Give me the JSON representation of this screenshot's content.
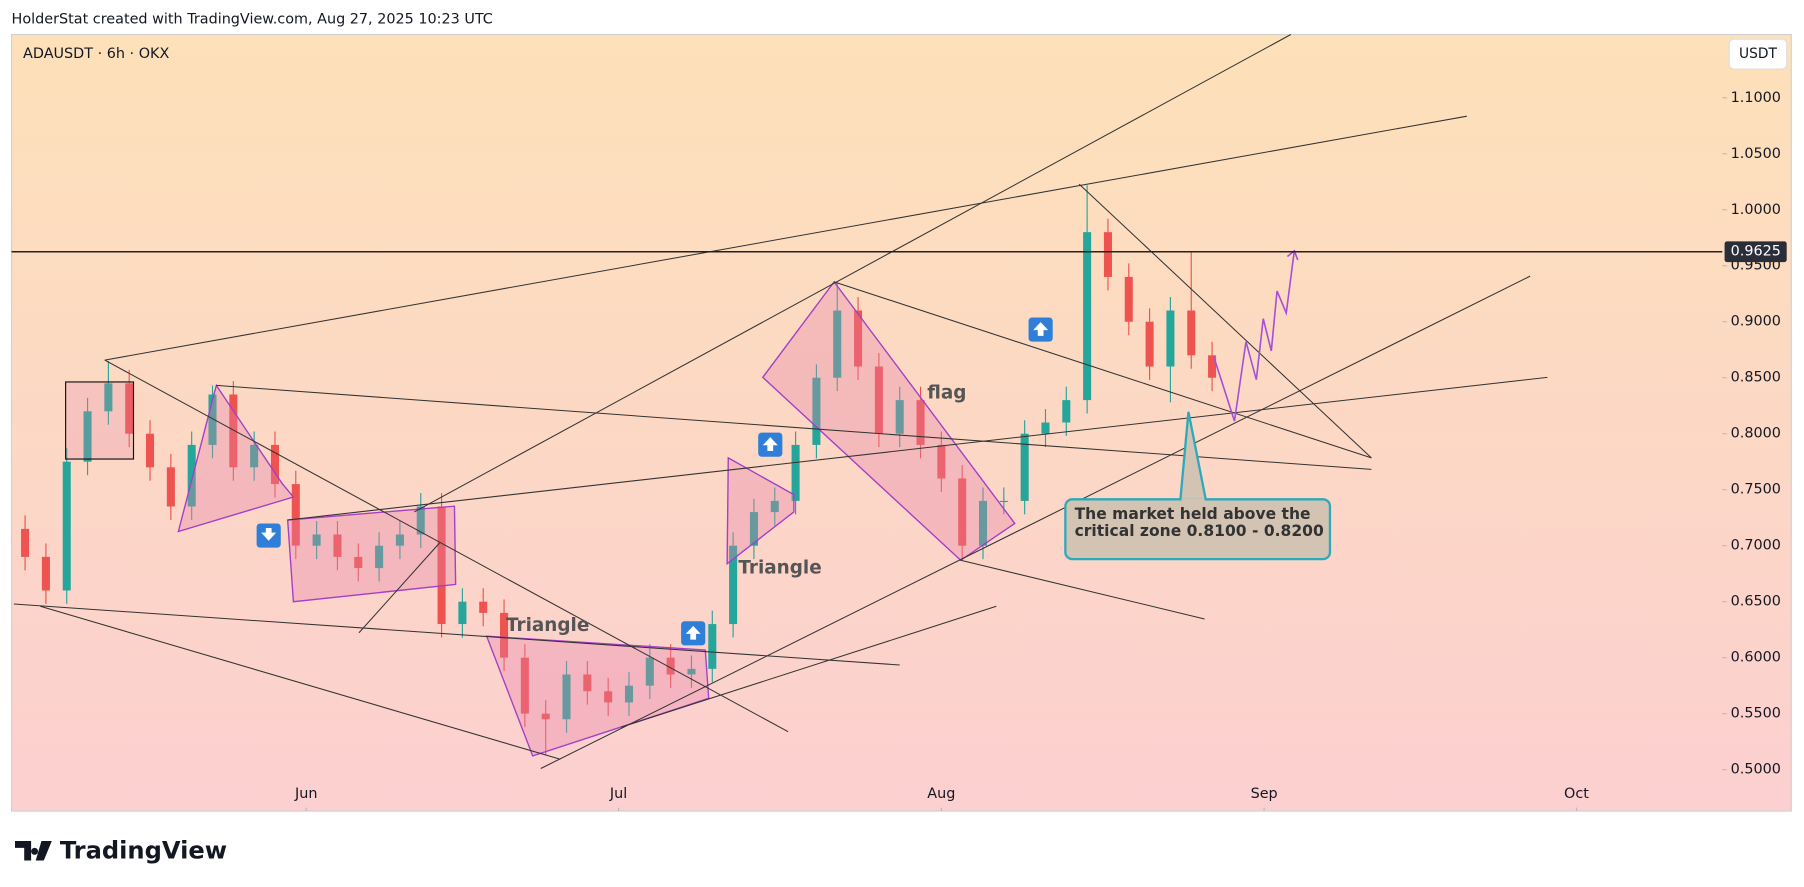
{
  "header": {
    "credit": "HolderStat created with TradingView.com, Aug 27, 2025 10:23 UTC",
    "logo": "TradingView"
  },
  "chart_data": {
    "type": "candlestick",
    "title": "ADAUSDT · 6h · OKX",
    "currency": "USDT",
    "x": [
      4,
      6,
      8,
      10,
      12,
      14,
      16,
      18,
      20,
      22,
      24,
      26,
      28,
      30,
      32,
      34,
      36,
      38,
      40,
      42,
      44,
      46,
      48,
      50,
      52,
      54,
      56,
      58,
      60,
      62,
      64,
      66,
      68,
      70,
      72,
      74,
      76,
      78,
      80,
      82,
      84,
      86,
      88,
      90,
      92,
      94,
      96,
      98,
      100,
      102,
      104,
      106,
      108,
      110,
      112,
      114,
      116,
      118
    ],
    "open": [
      0.715,
      0.69,
      0.66,
      0.775,
      0.82,
      0.845,
      0.8,
      0.77,
      0.735,
      0.79,
      0.835,
      0.77,
      0.79,
      0.755,
      0.7,
      0.71,
      0.69,
      0.68,
      0.7,
      0.71,
      0.735,
      0.63,
      0.65,
      0.64,
      0.6,
      0.55,
      0.545,
      0.585,
      0.57,
      0.56,
      0.575,
      0.6,
      0.585,
      0.59,
      0.63,
      0.7,
      0.73,
      0.74,
      0.79,
      0.85,
      0.91,
      0.86,
      0.8,
      0.83,
      0.79,
      0.76,
      0.7,
      0.74,
      0.74,
      0.8,
      0.81,
      0.83,
      0.98,
      0.94,
      0.9,
      0.86,
      0.91,
      0.87
    ],
    "high": [
      0.727,
      0.702,
      0.787,
      0.832,
      0.865,
      0.857,
      0.812,
      0.782,
      0.802,
      0.843,
      0.847,
      0.802,
      0.802,
      0.767,
      0.722,
      0.722,
      0.702,
      0.712,
      0.722,
      0.747,
      0.747,
      0.662,
      0.662,
      0.652,
      0.612,
      0.562,
      0.597,
      0.597,
      0.582,
      0.587,
      0.612,
      0.612,
      0.602,
      0.642,
      0.712,
      0.742,
      0.752,
      0.802,
      0.862,
      0.935,
      0.922,
      0.872,
      0.842,
      0.842,
      0.802,
      0.772,
      0.752,
      0.752,
      0.812,
      0.822,
      0.842,
      1.022,
      0.992,
      0.952,
      0.912,
      0.922,
      0.963,
      0.882
    ],
    "low": [
      0.678,
      0.648,
      0.648,
      0.763,
      0.808,
      0.788,
      0.758,
      0.723,
      0.723,
      0.778,
      0.758,
      0.758,
      0.743,
      0.688,
      0.688,
      0.678,
      0.668,
      0.668,
      0.688,
      0.698,
      0.618,
      0.618,
      0.628,
      0.588,
      0.538,
      0.513,
      0.533,
      0.558,
      0.548,
      0.548,
      0.563,
      0.573,
      0.573,
      0.578,
      0.618,
      0.688,
      0.718,
      0.728,
      0.778,
      0.838,
      0.848,
      0.788,
      0.788,
      0.778,
      0.748,
      0.688,
      0.688,
      0.728,
      0.728,
      0.788,
      0.798,
      0.818,
      0.928,
      0.888,
      0.848,
      0.828,
      0.858,
      0.838
    ],
    "close": [
      0.69,
      0.66,
      0.775,
      0.82,
      0.845,
      0.8,
      0.77,
      0.735,
      0.79,
      0.835,
      0.77,
      0.79,
      0.755,
      0.7,
      0.71,
      0.69,
      0.68,
      0.7,
      0.71,
      0.735,
      0.63,
      0.65,
      0.64,
      0.6,
      0.55,
      0.545,
      0.585,
      0.57,
      0.56,
      0.575,
      0.6,
      0.585,
      0.59,
      0.63,
      0.7,
      0.73,
      0.74,
      0.79,
      0.85,
      0.91,
      0.86,
      0.8,
      0.83,
      0.79,
      0.76,
      0.7,
      0.74,
      0.74,
      0.8,
      0.81,
      0.83,
      0.98,
      0.94,
      0.9,
      0.86,
      0.91,
      0.87,
      0.85
    ],
    "up_color": "#26a69a",
    "down_color": "#ef5350",
    "xlim": [
      2.7,
      167
    ],
    "xticks": [
      {
        "value": 31,
        "label": "Jun"
      },
      {
        "value": 61,
        "label": "Jul"
      },
      {
        "value": 92,
        "label": "Aug"
      },
      {
        "value": 123,
        "label": "Sep"
      },
      {
        "value": 153,
        "label": "Oct"
      }
    ],
    "ylim": [
      0.463,
      1.1565
    ],
    "yticks": [
      {
        "value": 0.5,
        "label": "0.5000"
      },
      {
        "value": 0.55,
        "label": "0.5500"
      },
      {
        "value": 0.6,
        "label": "0.6000"
      },
      {
        "value": 0.65,
        "label": "0.6500"
      },
      {
        "value": 0.7,
        "label": "0.7000"
      },
      {
        "value": 0.75,
        "label": "0.7500"
      },
      {
        "value": 0.8,
        "label": "0.8000"
      },
      {
        "value": 0.85,
        "label": "0.8500"
      },
      {
        "value": 0.9,
        "label": "0.9000"
      },
      {
        "value": 0.95,
        "label": "0.9500"
      },
      {
        "value": 1.0,
        "label": "1.0000"
      },
      {
        "value": 1.05,
        "label": "1.0500"
      },
      {
        "value": 1.1,
        "label": "1.1000"
      }
    ],
    "price_line": 0.9625,
    "annotations": [
      "Triangle",
      "Triangle",
      "flag",
      "The market held above the critical zone 0.8100 - 0.8200"
    ]
  }
}
